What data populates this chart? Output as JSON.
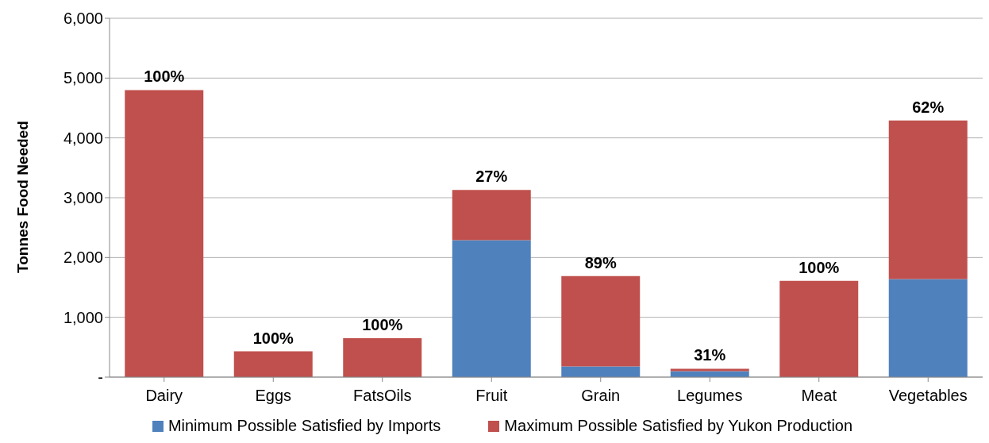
{
  "chart_data": {
    "type": "bar",
    "stacked": true,
    "ylabel": "Tonnes Food Needed",
    "categories": [
      "Dairy",
      "Eggs",
      "FatsOils",
      "Fruit",
      "Grain",
      "Legumes",
      "Meat",
      "Vegetables"
    ],
    "series": [
      {
        "name": "Minimum Possible Satisfied by Imports",
        "color": "#4f81bd",
        "values": [
          0,
          0,
          0,
          2290,
          180,
          100,
          0,
          1640
        ]
      },
      {
        "name": "Maximum Possible Satisfied by Yukon Production",
        "color": "#c0504d",
        "values": [
          4800,
          430,
          650,
          840,
          1510,
          40,
          1610,
          2650
        ]
      }
    ],
    "annotations": [
      {
        "text": "100%",
        "x": "Dairy",
        "y": 4800
      },
      {
        "text": "100%",
        "x": "Eggs",
        "y": 430
      },
      {
        "text": "100%",
        "x": "FatsOils",
        "y": 650
      },
      {
        "text": "27%",
        "x": "Fruit",
        "y": 3130
      },
      {
        "text": "89%",
        "x": "Grain",
        "y": 1690
      },
      {
        "text": "31%",
        "x": "Legumes",
        "y": 140
      },
      {
        "text": "100%",
        "x": "Meat",
        "y": 1610
      },
      {
        "text": "62%",
        "x": "Vegetables",
        "y": 4290
      }
    ],
    "ylim": [
      0,
      6000
    ],
    "yticks": [
      {
        "value": 0,
        "label": "-"
      },
      {
        "value": 1000,
        "label": "1,000"
      },
      {
        "value": 2000,
        "label": "2,000"
      },
      {
        "value": 3000,
        "label": "3,000"
      },
      {
        "value": 4000,
        "label": "4,000"
      },
      {
        "value": 5000,
        "label": "5,000"
      },
      {
        "value": 6000,
        "label": "6,000"
      }
    ],
    "grid": "y",
    "legend": "bottom"
  }
}
